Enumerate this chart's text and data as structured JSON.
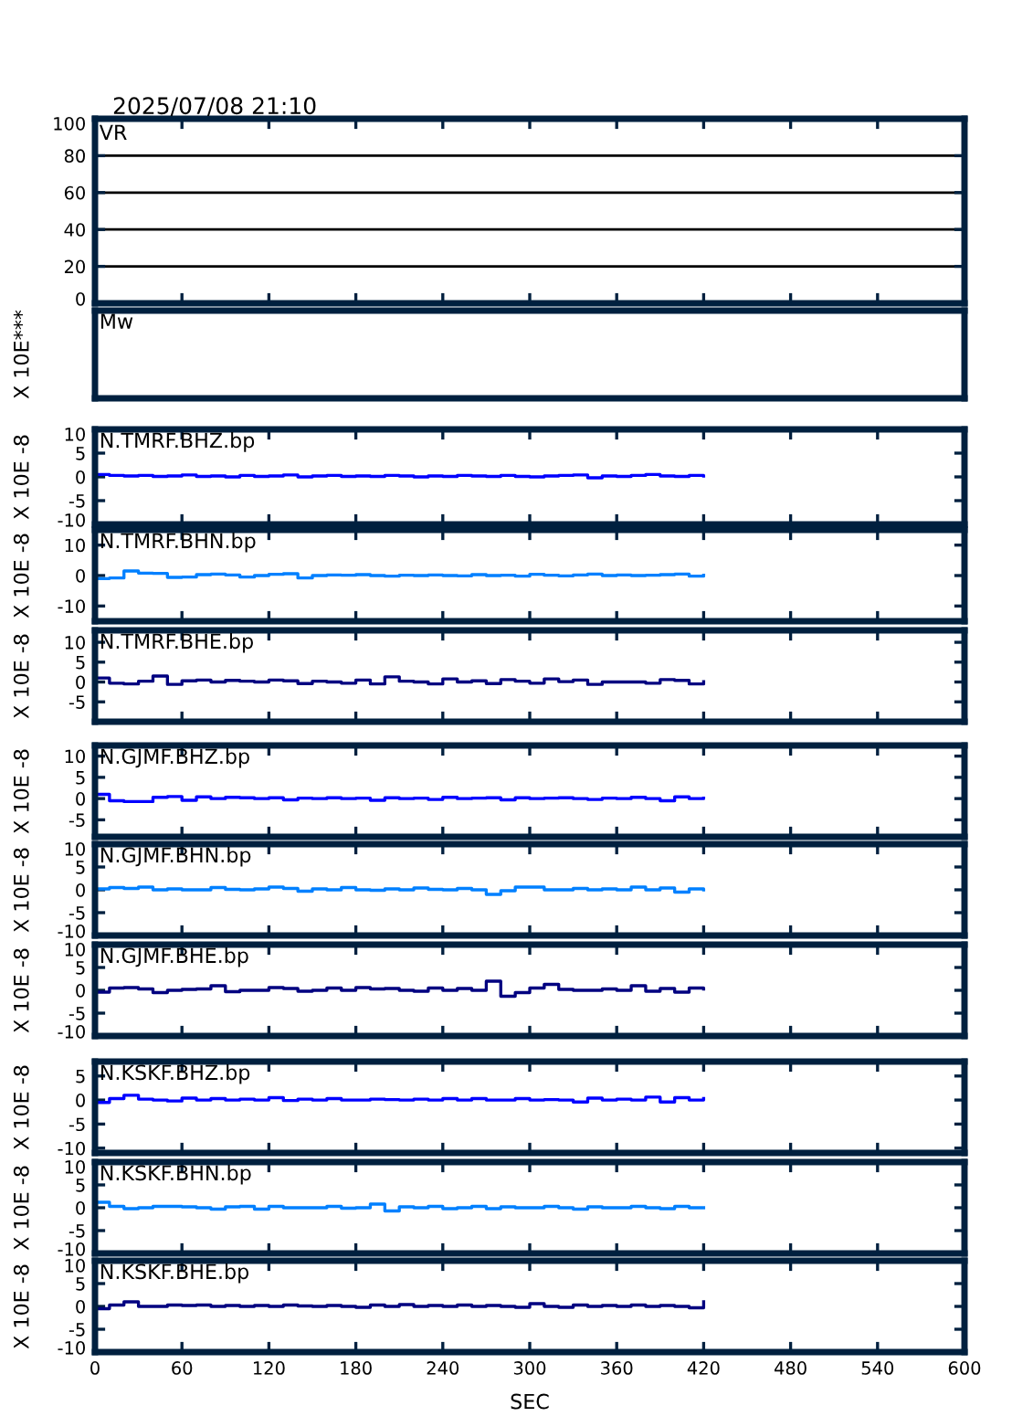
{
  "chart_data": [
    {
      "type": "line",
      "title": "2025/07/08 21:10",
      "annotations": [
        "VR"
      ],
      "xlim": [
        0,
        600
      ],
      "xticks": [
        0,
        60,
        120,
        180,
        240,
        300,
        360,
        420,
        480,
        540,
        600
      ],
      "ylim": [
        0,
        100
      ],
      "yticks": [
        0,
        20,
        40,
        60,
        80,
        100
      ],
      "grid": "y",
      "tick_labels": "y"
    },
    {
      "type": "other",
      "annotations": [
        "Mw"
      ],
      "ylabel": "X 10E***"
    },
    {
      "type": "step",
      "ylabel": "X 10E -8",
      "x": [
        0,
        10,
        20,
        30,
        40,
        50,
        60,
        70,
        80,
        90,
        100,
        110,
        120,
        130,
        140,
        150,
        160,
        170,
        180,
        190,
        200,
        210,
        220,
        230,
        240,
        250,
        260,
        270,
        280,
        290,
        300,
        310,
        320,
        330,
        340,
        350,
        360,
        370,
        380,
        390,
        400,
        410,
        420
      ],
      "xlim": [
        0,
        600
      ],
      "xticks": [
        0,
        60,
        120,
        180,
        240,
        300,
        360,
        420,
        480,
        540,
        600
      ],
      "ylim": [
        -10,
        10
      ],
      "yticks": [
        -10,
        -5,
        0,
        5,
        10
      ],
      "tick_labels": "y",
      "series": [
        {
          "name": "N.TMRF.BHZ.bp",
          "color": "#0000ff",
          "values": [
            0.5,
            0.3,
            0.2,
            0.3,
            0.1,
            0.2,
            0.4,
            0.1,
            0.2,
            0.0,
            0.3,
            0.1,
            0.2,
            0.4,
            0.0,
            0.2,
            0.3,
            0.1,
            0.2,
            0.1,
            0.3,
            0.2,
            0.0,
            0.2,
            0.1,
            0.3,
            0.2,
            0.1,
            0.3,
            0.1,
            0.0,
            0.2,
            0.3,
            0.4,
            -0.2,
            0.2,
            0.1,
            0.3,
            0.5,
            0.2,
            0.1,
            0.3,
            0.2
          ]
        }
      ]
    },
    {
      "type": "step",
      "ylabel": "X 10E -8",
      "x": [
        0,
        10,
        20,
        30,
        40,
        50,
        60,
        70,
        80,
        90,
        100,
        110,
        120,
        130,
        140,
        150,
        160,
        170,
        180,
        190,
        200,
        210,
        220,
        230,
        240,
        250,
        260,
        270,
        280,
        290,
        300,
        310,
        320,
        330,
        340,
        350,
        360,
        370,
        380,
        390,
        400,
        410,
        420
      ],
      "xlim": [
        0,
        600
      ],
      "xticks": [
        0,
        60,
        120,
        180,
        240,
        300,
        360,
        420,
        480,
        540,
        600
      ],
      "ylim": [
        -15,
        15
      ],
      "yticks": [
        -10,
        0,
        10
      ],
      "tick_labels": "y",
      "series": [
        {
          "name": "N.TMRF.BHN.bp",
          "color": "#0080ff",
          "values": [
            -1.0,
            -0.8,
            1.5,
            0.8,
            0.7,
            -0.6,
            -0.5,
            0.3,
            0.5,
            0.2,
            -0.5,
            0.0,
            0.4,
            0.6,
            -0.8,
            0.0,
            0.2,
            0.1,
            0.3,
            0.0,
            -0.2,
            0.1,
            0.0,
            0.2,
            0.0,
            -0.1,
            0.3,
            0.0,
            0.1,
            -0.2,
            0.4,
            0.1,
            -0.1,
            0.2,
            0.5,
            0.0,
            0.2,
            0.0,
            0.1,
            0.3,
            0.5,
            -0.2,
            0.1
          ]
        }
      ]
    },
    {
      "type": "step",
      "ylabel": "X 10E -8",
      "x": [
        0,
        10,
        20,
        30,
        40,
        50,
        60,
        70,
        80,
        90,
        100,
        110,
        120,
        130,
        140,
        150,
        160,
        170,
        180,
        190,
        200,
        210,
        220,
        230,
        240,
        250,
        260,
        270,
        280,
        290,
        300,
        310,
        320,
        330,
        340,
        350,
        360,
        370,
        380,
        390,
        400,
        410,
        420
      ],
      "xlim": [
        0,
        600
      ],
      "xticks": [
        0,
        60,
        120,
        180,
        240,
        300,
        360,
        420,
        480,
        540,
        600
      ],
      "ylim": [
        -10,
        13
      ],
      "yticks": [
        -5,
        0,
        5,
        10
      ],
      "tick_labels": "y",
      "series": [
        {
          "name": "N.TMRF.BHE.bp",
          "color": "#000080",
          "values": [
            1.0,
            -0.3,
            -0.5,
            0.2,
            1.5,
            -0.6,
            0.3,
            0.5,
            0.0,
            0.4,
            0.2,
            0.0,
            0.5,
            0.3,
            -0.4,
            0.2,
            0.0,
            -0.3,
            0.5,
            -0.5,
            1.3,
            0.2,
            0.0,
            -0.5,
            0.8,
            0.0,
            0.3,
            -0.4,
            0.6,
            0.2,
            -0.3,
            0.8,
            0.1,
            0.5,
            -0.6,
            0.0,
            0.0,
            0.0,
            -0.3,
            0.6,
            0.4,
            -0.5,
            0.1
          ]
        }
      ]
    },
    {
      "type": "step",
      "ylabel": "X 10E -8",
      "x": [
        0,
        10,
        20,
        30,
        40,
        50,
        60,
        70,
        80,
        90,
        100,
        110,
        120,
        130,
        140,
        150,
        160,
        170,
        180,
        190,
        200,
        210,
        220,
        230,
        240,
        250,
        260,
        270,
        280,
        290,
        300,
        310,
        320,
        330,
        340,
        350,
        360,
        370,
        380,
        390,
        400,
        410,
        420
      ],
      "xlim": [
        0,
        600
      ],
      "xticks": [
        0,
        60,
        120,
        180,
        240,
        300,
        360,
        420,
        480,
        540,
        600
      ],
      "ylim": [
        -9,
        12.5
      ],
      "yticks": [
        -5,
        0,
        5,
        10
      ],
      "tick_labels": "y",
      "series": [
        {
          "name": "N.GJMF.BHZ.bp",
          "color": "#0000ff",
          "values": [
            1.0,
            -0.5,
            -0.7,
            -0.7,
            0.3,
            0.5,
            -0.4,
            0.4,
            0.0,
            0.3,
            0.2,
            0.0,
            0.2,
            -0.3,
            0.1,
            0.0,
            0.2,
            0.0,
            0.1,
            -0.4,
            0.2,
            0.0,
            0.1,
            -0.2,
            0.3,
            0.0,
            0.1,
            0.2,
            -0.3,
            0.2,
            0.0,
            0.1,
            0.2,
            0.0,
            -0.2,
            0.1,
            0.0,
            0.3,
            0.0,
            -0.5,
            0.4,
            0.0,
            0.1
          ]
        }
      ]
    },
    {
      "type": "step",
      "ylabel": "X 10E -8",
      "x": [
        0,
        10,
        20,
        30,
        40,
        50,
        60,
        70,
        80,
        90,
        100,
        110,
        120,
        130,
        140,
        150,
        160,
        170,
        180,
        190,
        200,
        210,
        220,
        230,
        240,
        250,
        260,
        270,
        280,
        290,
        300,
        310,
        320,
        330,
        340,
        350,
        360,
        370,
        380,
        390,
        400,
        410,
        420
      ],
      "xlim": [
        0,
        600
      ],
      "xticks": [
        0,
        60,
        120,
        180,
        240,
        300,
        360,
        420,
        480,
        540,
        600
      ],
      "ylim": [
        -10,
        10
      ],
      "yticks": [
        -10,
        -5,
        0,
        5,
        10
      ],
      "tick_labels": "y",
      "series": [
        {
          "name": "N.GJMF.BHN.bp",
          "color": "#0080ff",
          "values": [
            0.2,
            0.5,
            0.3,
            0.6,
            0.0,
            0.2,
            0.0,
            0.0,
            0.5,
            0.1,
            0.0,
            0.2,
            0.6,
            0.3,
            -0.3,
            0.2,
            0.0,
            0.5,
            0.0,
            -0.1,
            0.2,
            0.0,
            0.4,
            0.1,
            0.0,
            0.3,
            0.0,
            -1.0,
            -0.2,
            0.6,
            0.6,
            0.0,
            0.0,
            0.3,
            0.0,
            0.2,
            0.0,
            0.6,
            0.0,
            0.4,
            -0.5,
            0.2,
            0.0
          ]
        }
      ]
    },
    {
      "type": "step",
      "ylabel": "X 10E -8",
      "x": [
        0,
        10,
        20,
        30,
        40,
        50,
        60,
        70,
        80,
        90,
        100,
        110,
        120,
        130,
        140,
        150,
        160,
        170,
        180,
        190,
        200,
        210,
        220,
        230,
        240,
        250,
        260,
        270,
        280,
        290,
        300,
        310,
        320,
        330,
        340,
        350,
        360,
        370,
        380,
        390,
        400,
        410,
        420
      ],
      "xlim": [
        0,
        600
      ],
      "xticks": [
        0,
        60,
        120,
        180,
        240,
        300,
        360,
        420,
        480,
        540,
        600
      ],
      "ylim": [
        -10,
        10
      ],
      "yticks": [
        -10,
        -5,
        0,
        5,
        10
      ],
      "tick_labels": "y",
      "series": [
        {
          "name": "N.GJMF.BHE.bp",
          "color": "#000080",
          "values": [
            -0.4,
            0.5,
            0.6,
            0.3,
            -0.5,
            0.0,
            0.2,
            0.3,
            1.0,
            -0.3,
            0.0,
            0.0,
            0.6,
            0.4,
            -0.2,
            0.0,
            0.5,
            0.0,
            0.6,
            0.3,
            0.4,
            0.0,
            -0.2,
            0.5,
            0.0,
            0.4,
            0.0,
            2.0,
            -1.3,
            -0.5,
            0.5,
            1.3,
            0.2,
            0.0,
            0.0,
            0.3,
            0.0,
            1.0,
            -0.2,
            0.4,
            -0.4,
            0.5,
            0.3
          ]
        }
      ]
    },
    {
      "type": "step",
      "ylabel": "X 10E -8",
      "x": [
        0,
        10,
        20,
        30,
        40,
        50,
        60,
        70,
        80,
        90,
        100,
        110,
        120,
        130,
        140,
        150,
        160,
        170,
        180,
        190,
        200,
        210,
        220,
        230,
        240,
        250,
        260,
        270,
        280,
        290,
        300,
        310,
        320,
        330,
        340,
        350,
        360,
        370,
        380,
        390,
        400,
        410,
        420
      ],
      "xlim": [
        0,
        600
      ],
      "xticks": [
        0,
        60,
        120,
        180,
        240,
        300,
        360,
        420,
        480,
        540,
        600
      ],
      "ylim": [
        -11,
        8
      ],
      "yticks": [
        -10,
        -5,
        0,
        5
      ],
      "tick_labels": "y",
      "series": [
        {
          "name": "N.KSKF.BHZ.bp",
          "color": "#0000ff",
          "values": [
            -0.5,
            0.3,
            1.0,
            0.2,
            0.0,
            -0.2,
            0.4,
            0.0,
            0.3,
            0.0,
            0.2,
            0.0,
            0.5,
            -0.1,
            0.2,
            0.0,
            0.3,
            0.0,
            0.0,
            0.2,
            0.1,
            0.0,
            0.2,
            0.0,
            0.3,
            0.0,
            0.3,
            0.0,
            0.0,
            0.3,
            0.0,
            0.1,
            0.0,
            -0.4,
            0.4,
            0.0,
            0.2,
            0.0,
            0.6,
            -0.4,
            0.5,
            0.0,
            0.3
          ]
        }
      ]
    },
    {
      "type": "step",
      "ylabel": "X 10E -8",
      "x": [
        0,
        10,
        20,
        30,
        40,
        50,
        60,
        70,
        80,
        90,
        100,
        110,
        120,
        130,
        140,
        150,
        160,
        170,
        180,
        190,
        200,
        210,
        220,
        230,
        240,
        250,
        260,
        270,
        280,
        290,
        300,
        310,
        320,
        330,
        340,
        350,
        360,
        370,
        380,
        390,
        400,
        410,
        420
      ],
      "xlim": [
        0,
        600
      ],
      "xticks": [
        0,
        60,
        120,
        180,
        240,
        300,
        360,
        420,
        480,
        540,
        600
      ],
      "ylim": [
        -10,
        10
      ],
      "yticks": [
        -10,
        -5,
        0,
        5,
        10
      ],
      "tick_labels": "y",
      "series": [
        {
          "name": "N.KSKF.BHN.bp",
          "color": "#0080ff",
          "values": [
            1.2,
            0.3,
            -0.2,
            0.0,
            0.3,
            0.3,
            0.2,
            0.0,
            -0.3,
            0.2,
            0.3,
            -0.3,
            0.3,
            0.0,
            0.0,
            0.0,
            0.3,
            -0.1,
            0.0,
            0.8,
            -0.7,
            0.2,
            0.0,
            0.3,
            -0.2,
            0.0,
            0.3,
            -0.2,
            0.2,
            0.0,
            0.0,
            0.3,
            0.0,
            -0.3,
            0.2,
            0.0,
            0.0,
            0.3,
            0.0,
            -0.2,
            0.3,
            0.0,
            0.0
          ]
        }
      ]
    },
    {
      "type": "step",
      "ylabel": "X 10E -8",
      "xlabel": "SEC",
      "x": [
        0,
        10,
        20,
        30,
        40,
        50,
        60,
        70,
        80,
        90,
        100,
        110,
        120,
        130,
        140,
        150,
        160,
        170,
        180,
        190,
        200,
        210,
        220,
        230,
        240,
        250,
        260,
        270,
        280,
        290,
        300,
        310,
        320,
        330,
        340,
        350,
        360,
        370,
        380,
        390,
        400,
        410,
        420
      ],
      "xlim": [
        0,
        600
      ],
      "xticks": [
        0,
        60,
        120,
        180,
        240,
        300,
        360,
        420,
        480,
        540,
        600
      ],
      "ylim": [
        -10,
        10
      ],
      "yticks": [
        -10,
        -5,
        0,
        5,
        10
      ],
      "series": [
        {
          "name": "N.KSKF.BHE.bp",
          "color": "#000080",
          "values": [
            -0.5,
            0.3,
            1.0,
            0.0,
            0.0,
            0.3,
            0.2,
            0.3,
            0.0,
            0.2,
            0.0,
            0.2,
            0.0,
            0.3,
            0.1,
            0.0,
            0.2,
            0.0,
            -0.2,
            0.3,
            0.0,
            0.4,
            0.0,
            0.2,
            0.0,
            0.3,
            0.0,
            0.2,
            0.0,
            -0.2,
            0.6,
            0.0,
            -0.2,
            0.3,
            0.0,
            0.2,
            0.0,
            0.3,
            0.0,
            0.2,
            0.0,
            -0.3,
            1.0
          ]
        }
      ]
    }
  ]
}
